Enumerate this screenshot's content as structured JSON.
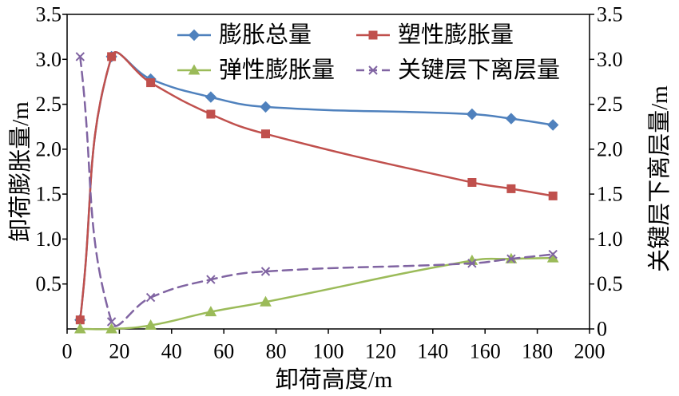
{
  "chart_data": {
    "type": "line",
    "xlabel": "卸荷高度/m",
    "ylabel": "卸荷膨胀量/m",
    "y2label": "关键层下离层量/m",
    "xlim": [
      0,
      200
    ],
    "ylim": [
      0,
      3.5
    ],
    "y2lim": [
      0,
      3.5
    ],
    "x_ticks": [
      "0",
      "20",
      "40",
      "60",
      "80",
      "100",
      "120",
      "140",
      "160",
      "180",
      "200"
    ],
    "y_ticks": [
      "0.5",
      "1.0",
      "1.5",
      "2.0",
      "2.5",
      "3.0",
      "3.5"
    ],
    "y2_ticks": [
      "0",
      "0.5",
      "1.0",
      "1.5",
      "2.0",
      "2.5",
      "3.0",
      "3.5"
    ],
    "grid": false,
    "legend": "top-right",
    "smooth": true,
    "x": [
      5,
      17,
      32,
      55,
      76,
      155,
      170,
      186
    ],
    "series": [
      {
        "name": "膨胀总量",
        "axis": "y",
        "marker": "diamond",
        "line": "solid",
        "color": "#4f81bd",
        "values": [
          0.1,
          3.03,
          2.78,
          2.58,
          2.47,
          2.39,
          2.34,
          2.27
        ]
      },
      {
        "name": "塑性膨胀量",
        "axis": "y",
        "marker": "square",
        "line": "solid",
        "color": "#c0504d",
        "values": [
          0.1,
          3.03,
          2.74,
          2.39,
          2.17,
          1.63,
          1.56,
          1.48
        ]
      },
      {
        "name": "弹性膨胀量",
        "axis": "y",
        "marker": "triangle",
        "line": "solid",
        "color": "#9bbb59",
        "values": [
          0,
          0,
          0.04,
          0.19,
          0.3,
          0.76,
          0.78,
          0.79
        ]
      },
      {
        "name": "关键层下离层量",
        "axis": "y2",
        "marker": "x",
        "line": "dashed",
        "color": "#8064a2",
        "values": [
          3.03,
          0.08,
          0.35,
          0.55,
          0.64,
          0.73,
          0.78,
          0.83
        ]
      }
    ]
  }
}
